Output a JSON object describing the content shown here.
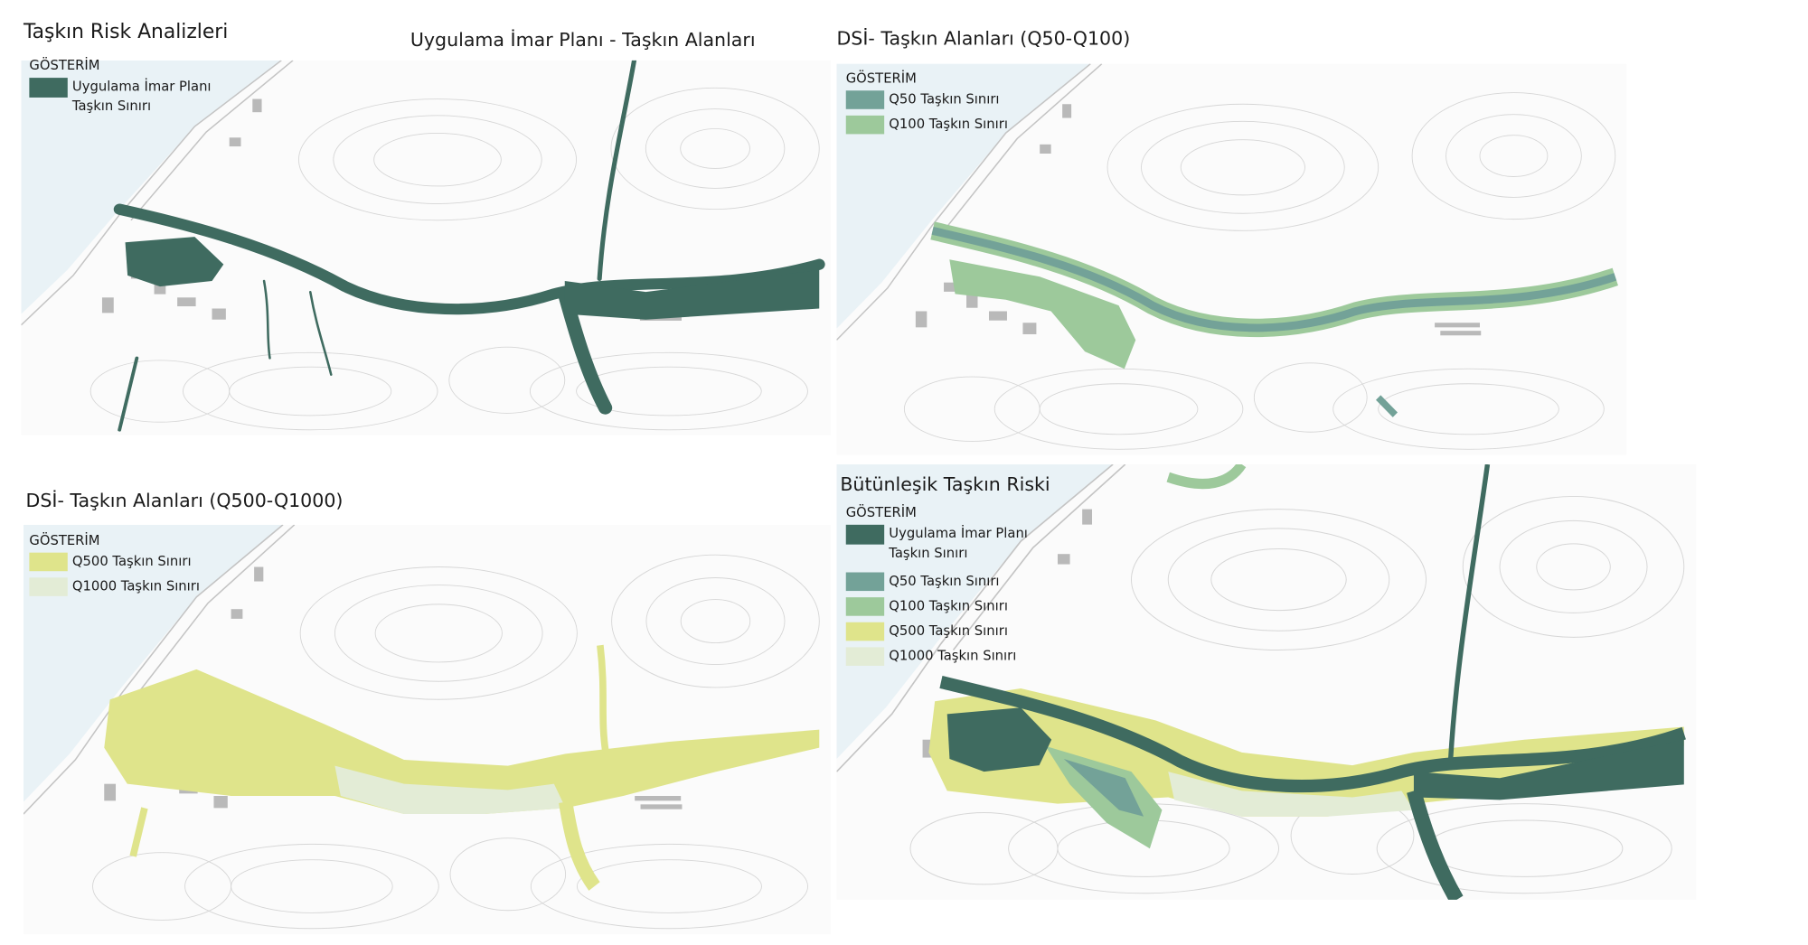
{
  "header": {
    "title": "Taşkın Risk Analizleri"
  },
  "panels": [
    {
      "title": "Uygulama İmar Planı - Taşkın Alanları",
      "legend": {
        "heading": "GÖSTERİM",
        "items": [
          {
            "lines": [
              "Uygulama İmar Planı",
              "Taşkın Sınırı"
            ],
            "color": "#3f6b60"
          }
        ]
      }
    },
    {
      "title": "DSİ- Taşkın Alanları (Q50-Q100)",
      "legend": {
        "heading": "GÖSTERİM",
        "items": [
          {
            "lines": [
              "Q50 Taşkın Sınırı"
            ],
            "color": "#73a298"
          },
          {
            "lines": [
              "Q100 Taşkın Sınırı"
            ],
            "color": "#9dc99b"
          }
        ]
      }
    },
    {
      "title": "DSİ- Taşkın Alanları (Q500-Q1000)",
      "legend": {
        "heading": "GÖSTERİM",
        "items": [
          {
            "lines": [
              "Q500 Taşkın Sınırı"
            ],
            "color": "#dfe48b"
          },
          {
            "lines": [
              "Q1000 Taşkın Sınırı"
            ],
            "color": "#e3ecd6"
          }
        ]
      }
    },
    {
      "title": "Bütünleşik Taşkın Riski",
      "legend": {
        "heading": "GÖSTERİM",
        "items": [
          {
            "lines": [
              "Uygulama İmar Planı",
              "Taşkın Sınırı"
            ],
            "color": "#3f6b60"
          },
          {
            "lines": [
              "Q50 Taşkın Sınırı"
            ],
            "color": "#73a298"
          },
          {
            "lines": [
              "Q100 Taşkın Sınırı"
            ],
            "color": "#9dc99b"
          },
          {
            "lines": [
              "Q500 Taşkın Sınırı"
            ],
            "color": "#dfe48b"
          },
          {
            "lines": [
              "Q1000 Taşkın Sınırı"
            ],
            "color": "#e3ecd6"
          }
        ]
      }
    }
  ]
}
